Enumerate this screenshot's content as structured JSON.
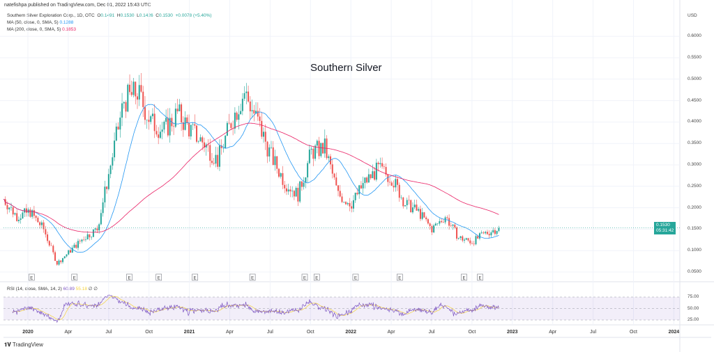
{
  "header": {
    "published": "natefishpa published on TradingView.com, Dec 01, 2022 15:43 UTC"
  },
  "legend": {
    "symbol": "Southern Silver Exploration Corp., 1D, OTC",
    "o_label": "O",
    "o": "0.1491",
    "h_label": "H",
    "h": "0.1530",
    "l_label": "L",
    "l": "0.1426",
    "c_label": "C",
    "c": "0.1530",
    "change": "+0.0078 (+5.40%)",
    "ma50_label": "MA (50, close, 0, SMA, 5)",
    "ma50": "0.1288",
    "ma200_label": "MA (200, close, 0, SMA, 5)",
    "ma200": "0.1853",
    "rsi_label": "RSI (14, close, SMA, 14, 2)",
    "rsi": "60.89",
    "rsi_ma": "55.18",
    "rsi_extra": "∅ ∅"
  },
  "price_tag": {
    "price": "0.1530",
    "countdown": "05:31:42"
  },
  "footer": {
    "logo": "TradingView"
  },
  "colors": {
    "up": "#26a69a",
    "down": "#ef5350",
    "ma50": "#2196f3",
    "ma200": "#e91e63",
    "rsi": "#7e57c2",
    "rsi_ma": "#f5d23a"
  },
  "chart_data": {
    "type": "candlestick",
    "title": "Southern Silver",
    "currency": "USD",
    "ylim": [
      0.03,
      0.62
    ],
    "y_ticks": [
      "0.6000",
      "0.5500",
      "0.5000",
      "0.4500",
      "0.4000",
      "0.3500",
      "0.3000",
      "0.2500",
      "0.2000",
      "0.1500",
      "0.1000",
      "0.0500"
    ],
    "rsi_ticks": [
      "75.00",
      "50.00",
      "25.00"
    ],
    "x_ticks": [
      {
        "label": "2020",
        "major": true
      },
      {
        "label": "Apr"
      },
      {
        "label": "Jul"
      },
      {
        "label": "Oct"
      },
      {
        "label": "2021",
        "major": true
      },
      {
        "label": "Apr"
      },
      {
        "label": "Jul"
      },
      {
        "label": "Oct"
      },
      {
        "label": "2022",
        "major": true
      },
      {
        "label": "Apr"
      },
      {
        "label": "Jul"
      },
      {
        "label": "Oct"
      },
      {
        "label": "2023",
        "major": true
      },
      {
        "label": "Apr"
      },
      {
        "label": "Jul"
      },
      {
        "label": "Oct"
      },
      {
        "label": "2024",
        "major": true
      }
    ],
    "monthly_closes": {
      "start": "2019-11",
      "values": [
        0.22,
        0.18,
        0.19,
        0.15,
        0.07,
        0.1,
        0.13,
        0.15,
        0.3,
        0.45,
        0.47,
        0.4,
        0.38,
        0.42,
        0.38,
        0.35,
        0.31,
        0.4,
        0.47,
        0.4,
        0.32,
        0.26,
        0.23,
        0.33,
        0.34,
        0.23,
        0.21,
        0.26,
        0.29,
        0.27,
        0.21,
        0.19,
        0.15,
        0.18,
        0.13,
        0.12,
        0.14,
        0.153
      ]
    },
    "earnings_markers": {
      "label": "E",
      "months": [
        2.1,
        5.3,
        9.4,
        11.6,
        14.3,
        18.6,
        22.5,
        23.4,
        26.3,
        29.6,
        34.4,
        35.6
      ]
    }
  }
}
